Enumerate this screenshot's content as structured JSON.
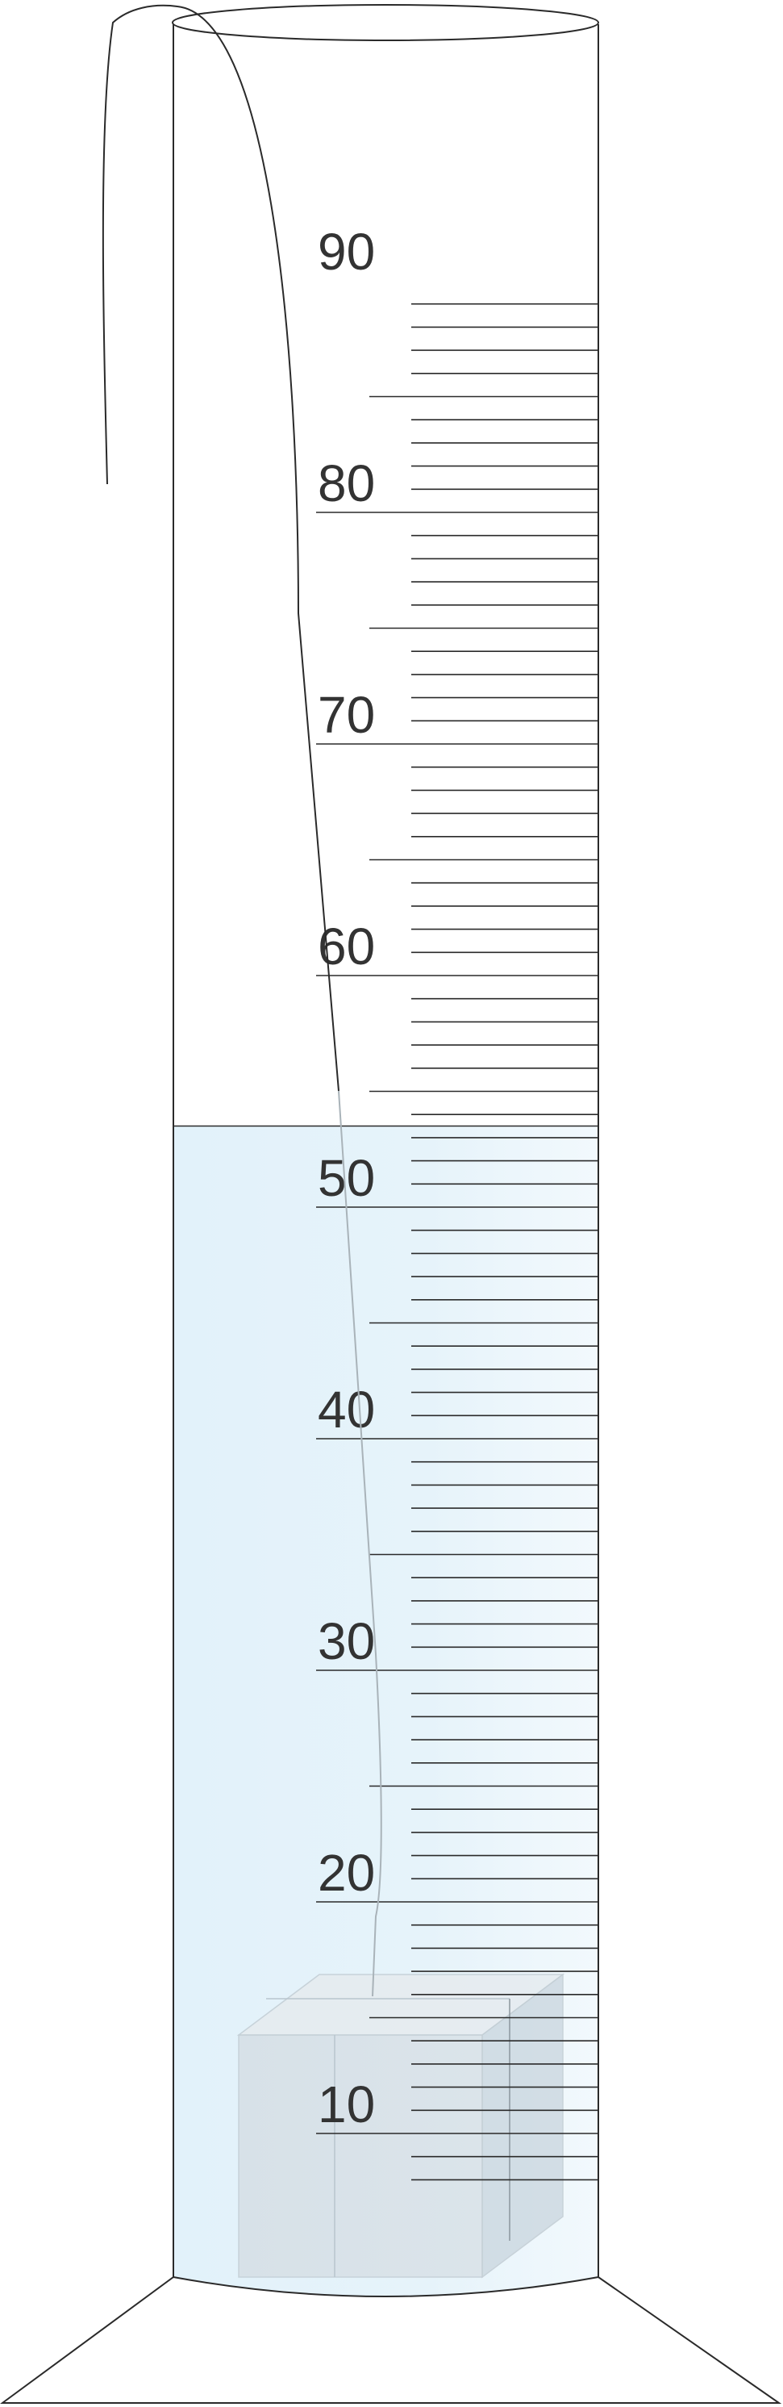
{
  "scale": {
    "labels": [
      "10",
      "20",
      "30",
      "40",
      "50",
      "60",
      "70",
      "80",
      "90"
    ],
    "min_mark": 10,
    "max_mark": 90,
    "minor_step": 1,
    "medium_step": 5,
    "major_step": 10
  },
  "liquid": {
    "level": 53.5,
    "color": "#dff0f8"
  },
  "colors": {
    "outline": "#2a2a2a",
    "label": "#333333",
    "block": "#d3dfe6"
  },
  "objects": {
    "solid": "cube-block",
    "string": "thread"
  }
}
